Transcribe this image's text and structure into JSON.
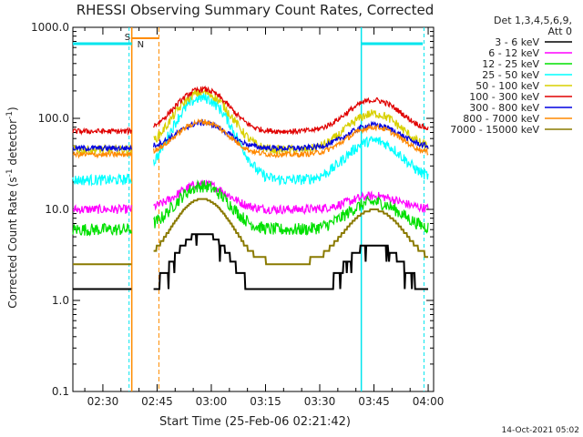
{
  "chart_data": {
    "type": "line",
    "title": "RHESSI Observing Summary Count Rates, Corrected",
    "xlabel": "Start Time (25-Feb-06 02:21:42)",
    "ylabel_main": "Corrected Count Rate (s",
    "ylabel_sup1": "-1",
    "ylabel_mid": " detector",
    "ylabel_sup2": "-1",
    "ylabel_end": ")",
    "y_scale": "log",
    "ylim": [
      0.1,
      1000
    ],
    "xlim": [
      "02:21:42",
      "04:01:30"
    ],
    "x_ticks": [
      "02:30",
      "02:45",
      "03:00",
      "03:15",
      "03:30",
      "03:45",
      "04:00"
    ],
    "y_ticks": [
      "0.1",
      "1.0",
      "10.0",
      "100.0",
      "1000.0"
    ],
    "legend_header": [
      "Det 1,3,4,5,6,9,",
      "Att 0"
    ],
    "legend_placement": "right",
    "markers": {
      "S": "S",
      "N": "N"
    },
    "footer_date": "14-Oct-2021 05:02",
    "series": [
      {
        "name": "3 - 6 keV",
        "color": "#000000",
        "type": "step"
      },
      {
        "name": "6 - 12 keV",
        "color": "#ff00ff"
      },
      {
        "name": "12 - 25 keV",
        "color": "#00e000"
      },
      {
        "name": "25 - 50 keV",
        "color": "#00ffff"
      },
      {
        "name": "50 - 100 keV",
        "color": "#d8d000"
      },
      {
        "name": "100 - 300 keV",
        "color": "#e00000"
      },
      {
        "name": "300 - 800 keV",
        "color": "#0000e0"
      },
      {
        "name": "800 - 7000 keV",
        "color": "#ff8800"
      },
      {
        "name": "7000 - 15000 keV",
        "color": "#8a7a00"
      }
    ]
  }
}
